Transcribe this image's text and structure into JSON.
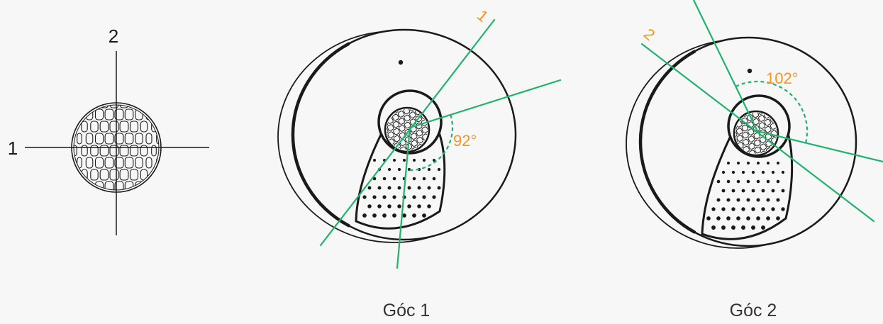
{
  "lens_diagram": {
    "axis_top_label": "2",
    "axis_left_label": "1"
  },
  "sensor_1": {
    "line_label": "1",
    "angle_label": "92°",
    "caption": "Góc 1"
  },
  "sensor_2": {
    "line_label": "2",
    "angle_label": "102°",
    "caption": "Góc 2"
  },
  "colors": {
    "background": "#f7f7f7",
    "outline": "#1a1a1a",
    "detection_ray": "#1fb36b",
    "annotation": "#f7941d",
    "caption": "#333333"
  }
}
